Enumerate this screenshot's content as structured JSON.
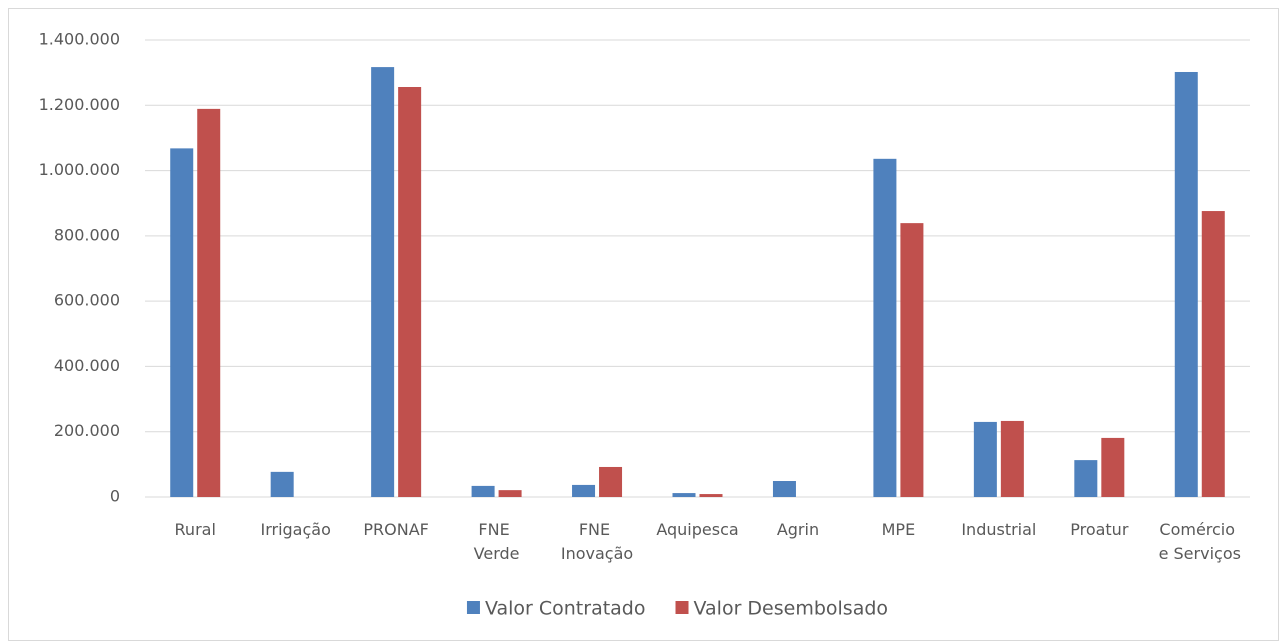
{
  "chart_data": {
    "type": "bar",
    "categories": [
      "Rural",
      "Irrigação",
      "PRONAF",
      "FNE Verde",
      "FNE Inovação",
      "Aquipesca",
      "Agrin",
      "MPE",
      "Industrial",
      "Proatur",
      "Comércio e Serviços"
    ],
    "series": [
      {
        "name": "Valor Contratado",
        "color": "#4f81bd",
        "values": [
          1068000,
          77000,
          1317000,
          34000,
          37000,
          12000,
          49000,
          1036000,
          230000,
          113000,
          1302000
        ]
      },
      {
        "name": "Valor Desembolsado",
        "color": "#c0504d",
        "values": [
          1189000,
          0,
          1256000,
          21000,
          92000,
          9000,
          0,
          839000,
          233000,
          181000,
          876000
        ]
      }
    ],
    "ylim": [
      0,
      1400000
    ],
    "yticks": [
      0,
      {
        "value": 200000,
        "label": "200.000"
      },
      {
        "value": 400000,
        "label": "400.000"
      },
      {
        "value": 600000,
        "label": "600.000"
      },
      {
        "value": 800000,
        "label": "800.000"
      },
      {
        "value": 1000000,
        "label": "1.000.000"
      },
      {
        "value": 1200000,
        "label": "1.200.000"
      },
      {
        "value": 1400000,
        "label": "1.400.000"
      }
    ],
    "grid": true,
    "legend": "bottom"
  }
}
